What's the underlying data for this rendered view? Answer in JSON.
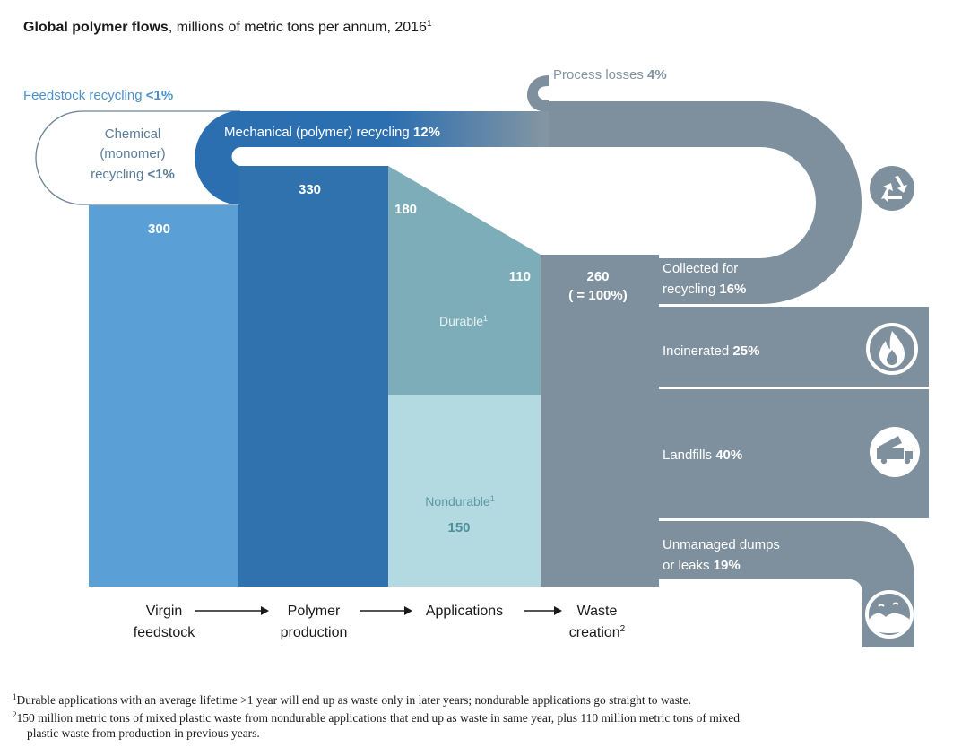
{
  "title": {
    "bold": "Global polymer flows",
    "rest": ", millions of metric tons per annum, 2016",
    "sup": "1"
  },
  "process_losses": {
    "label": "Process losses ",
    "pct": "4%"
  },
  "feedstock_recycling": {
    "label": "Feedstock recycling ",
    "pct": "<1%"
  },
  "chemical_recycling": {
    "line1": "Chemical",
    "line2": "(monomer)",
    "line3": "recycling ",
    "pct": "<1%"
  },
  "mechanical_recycling": {
    "label": "Mechanical (polymer) recycling ",
    "pct": "12%"
  },
  "bars": {
    "virgin_value": "300",
    "polymer_value": "330",
    "applications_value": "180",
    "durable_value": "110",
    "durable_label": "Durable",
    "durable_sup": "1",
    "nondurable_label": "Nondurable",
    "nondurable_sup": "1",
    "nondurable_value": "150",
    "waste_value": "260",
    "waste_pct": "( = 100%)"
  },
  "outcomes": [
    {
      "line1": "Collected for",
      "line2": "recycling ",
      "pct": "16%",
      "icon": "recycle-icon"
    },
    {
      "line1": "Incinerated ",
      "pct": "25%",
      "icon": "flame-icon"
    },
    {
      "line1": "Landfills ",
      "pct": "40%",
      "icon": "truck-icon"
    },
    {
      "line1": "Unmanaged dumps",
      "line2": "or leaks ",
      "pct": "19%",
      "icon": "ocean-icon"
    }
  ],
  "stages": {
    "virgin": [
      "Virgin",
      "feedstock"
    ],
    "polymer": [
      "Polymer",
      "production"
    ],
    "applications": [
      "Applications"
    ],
    "waste": [
      "Waste",
      "creation",
      "2"
    ]
  },
  "footnotes": [
    {
      "mark": "1",
      "text": "Durable applications with an average lifetime >1 year will end up as waste only in later years; nondurable applications go straight to waste."
    },
    {
      "mark": "2",
      "text": "150 million metric tons of mixed plastic waste from nondurable applications that end up as waste in same year, plus 110 million metric tons of mixed",
      "text2": "plastic waste from production in previous years."
    }
  ],
  "colors": {
    "virgin": "#5a9fd6",
    "polymer": "#2f72ad",
    "durable": "#7dadb8",
    "nondurable": "#b2dae0",
    "waste": "#7e909d",
    "mech": "#2c6fb0",
    "feedstock_text": "#4b91cc",
    "nondurable_text": "#4f8f9b"
  }
}
